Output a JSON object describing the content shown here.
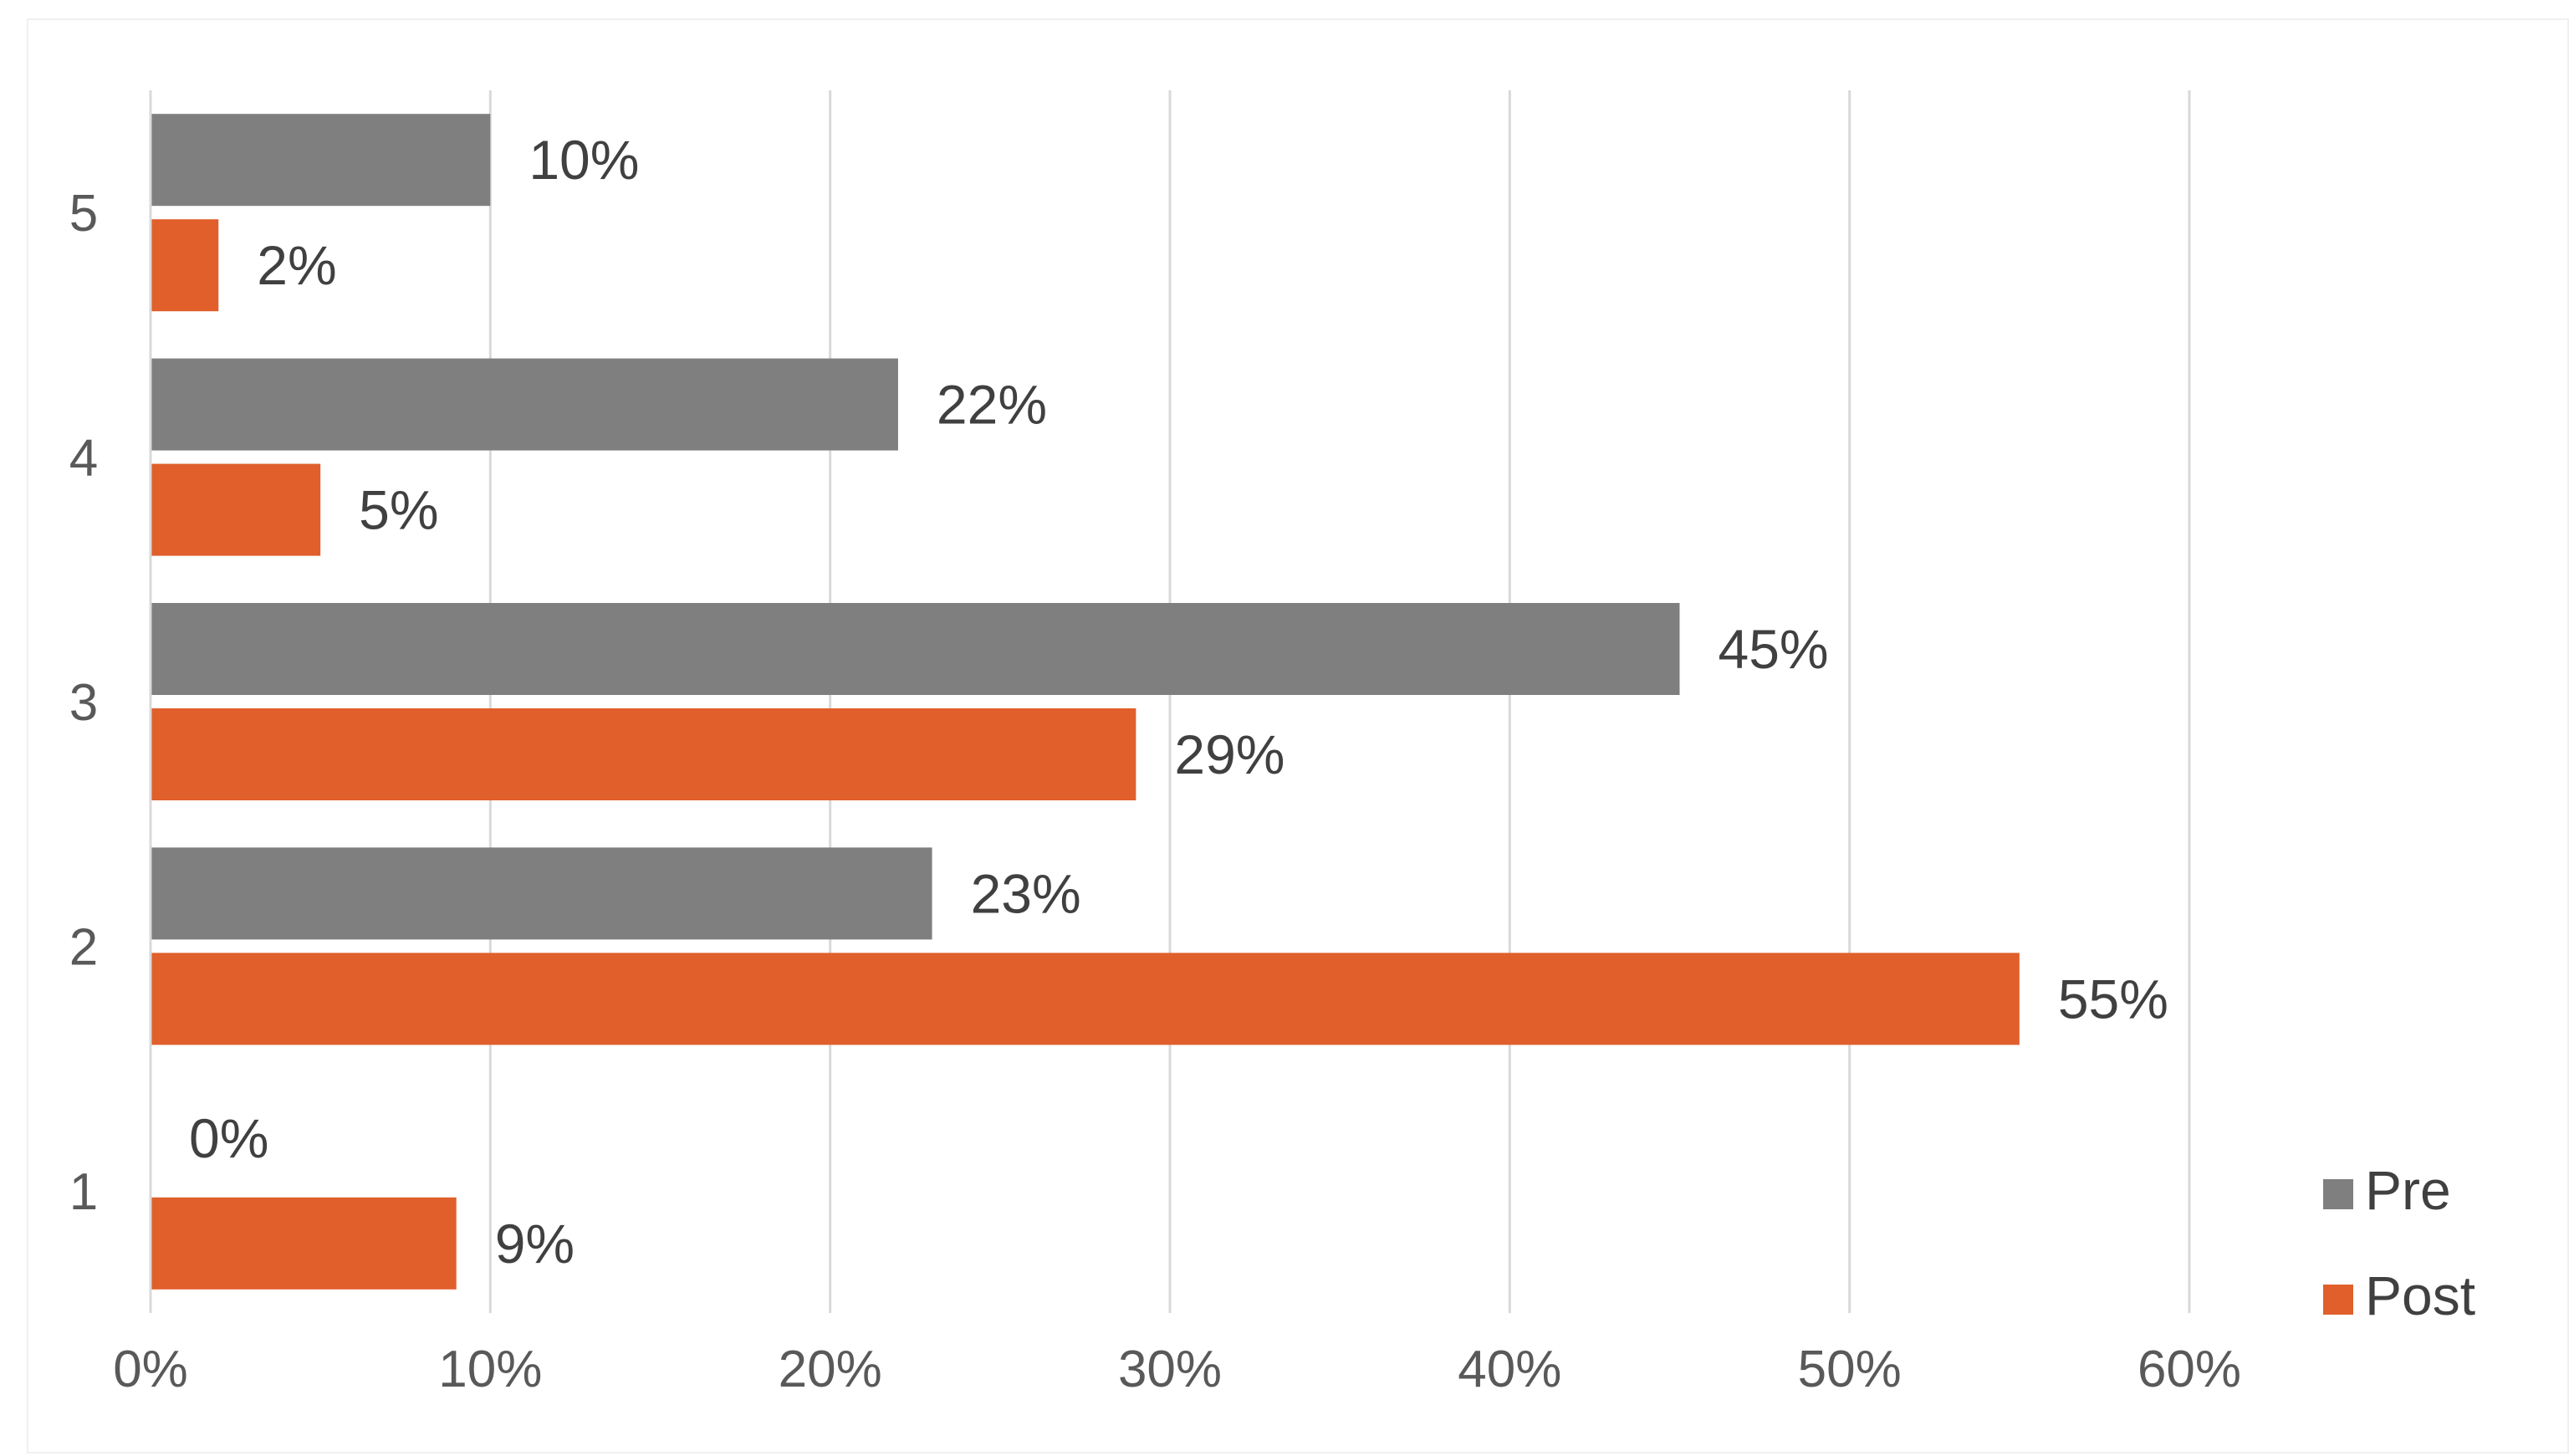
{
  "chart_data": {
    "type": "bar",
    "orientation": "horizontal",
    "categories": [
      "1",
      "2",
      "3",
      "4",
      "5"
    ],
    "series": [
      {
        "name": "Pre",
        "color": "#7f7f7f",
        "values": [
          0,
          23,
          45,
          22,
          10
        ],
        "labels": [
          "0%",
          "23%",
          "45%",
          "22%",
          "10%"
        ]
      },
      {
        "name": "Post",
        "color": "#e05f2b",
        "values": [
          9,
          55,
          29,
          5,
          2
        ],
        "labels": [
          "9%",
          "55%",
          "29%",
          "5%",
          "2%"
        ]
      }
    ],
    "x_ticks": [
      "0%",
      "10%",
      "20%",
      "30%",
      "40%",
      "50%",
      "60%"
    ],
    "xlim": [
      0,
      60
    ],
    "xlabel": "",
    "ylabel": "",
    "title": "",
    "grid": "vertical",
    "legend_position": "bottom-right",
    "gridline_color": "#d9d9d9",
    "axis_color": "#d9d9d9"
  }
}
